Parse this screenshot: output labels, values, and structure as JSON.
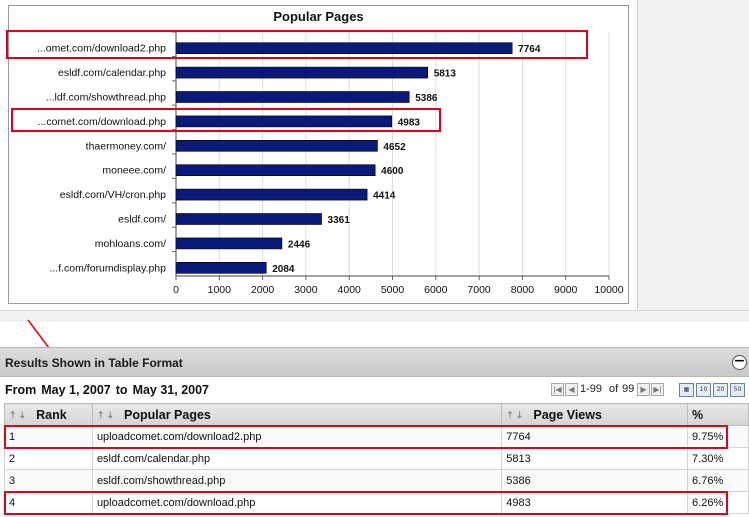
{
  "chart_data": {
    "type": "bar",
    "orientation": "horizontal",
    "title": "Popular Pages",
    "categories": [
      "...omet.com/download2.php",
      "esldf.com/calendar.php",
      "...ldf.com/showthread.php",
      "...comet.com/download.php",
      "thaermoney.com/",
      "moneee.com/",
      "esldf.com/VH/cron.php",
      "esldf.com/",
      "mohloans.com/",
      "...f.com/forumdisplay.php"
    ],
    "values": [
      7764,
      5813,
      5386,
      4983,
      4652,
      4600,
      4414,
      3361,
      2446,
      2084
    ],
    "xlim": [
      0,
      10000
    ],
    "x_ticks": [
      0,
      1000,
      2000,
      3000,
      4000,
      5000,
      6000,
      7000,
      8000,
      9000,
      10000
    ],
    "highlighted_categories": [
      0,
      3
    ],
    "bar_color": "#0a1a7a",
    "grid": true
  },
  "results": {
    "title": "Results Shown in Table Format",
    "collapse_label": "−"
  },
  "date_range": {
    "from_label": "From",
    "start": "May 1, 2007",
    "to_label": "to",
    "end": "May 31, 2007"
  },
  "pager": {
    "first": "|◀",
    "prev": "◀",
    "range_text": "1-99",
    "of_label": "of",
    "total": "99",
    "next": "▶",
    "last": "▶|"
  },
  "view_options": [
    "▦",
    "10",
    "20",
    "50"
  ],
  "table": {
    "columns": [
      "Rank",
      "Popular Pages",
      "Page Views",
      "%"
    ],
    "sort_icons": "⇡⇣",
    "rows": [
      {
        "rank": "1",
        "page": "uploadcomet.com/download2.php",
        "views": "7764",
        "pct": "9.75%",
        "highlighted": true
      },
      {
        "rank": "2",
        "page": "esldf.com/calendar.php",
        "views": "5813",
        "pct": "7.30%",
        "highlighted": false
      },
      {
        "rank": "3",
        "page": "esldf.com/showthread.php",
        "views": "5386",
        "pct": "6.76%",
        "highlighted": false
      },
      {
        "rank": "4",
        "page": "uploadcomet.com/download.php",
        "views": "4983",
        "pct": "6.26%",
        "highlighted": true
      }
    ]
  },
  "colors": {
    "highlight_red": "#e0001a",
    "arrow_red": "#e0001a"
  }
}
